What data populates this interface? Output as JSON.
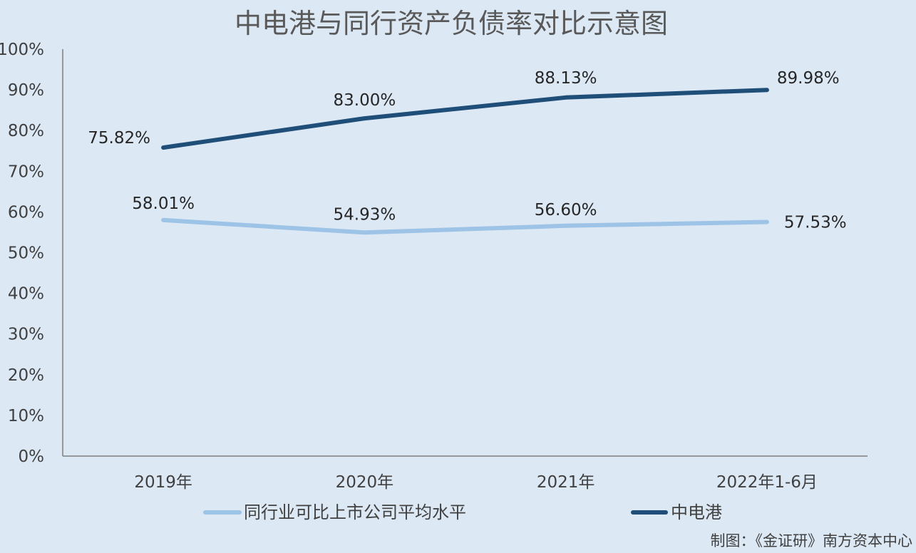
{
  "chart_data": {
    "type": "line",
    "title": "中电港与同行资产负债率对比示意图",
    "categories": [
      "2019年",
      "2020年",
      "2021年",
      "2022年1-6月"
    ],
    "ylim": [
      0,
      100
    ],
    "y_ticks": [
      "0%",
      "10%",
      "20%",
      "30%",
      "40%",
      "50%",
      "60%",
      "70%",
      "80%",
      "90%",
      "100%"
    ],
    "grid": false,
    "legend_position": "bottom",
    "series": [
      {
        "name": "同行业可比上市公司平均水平",
        "values": [
          58.01,
          54.93,
          56.6,
          57.53
        ],
        "labels": [
          "58.01%",
          "54.93%",
          "56.60%",
          "57.53%"
        ],
        "color": "#9dc3e6"
      },
      {
        "name": "中电港",
        "values": [
          75.82,
          83.0,
          88.13,
          89.98
        ],
        "labels": [
          "75.82%",
          "83.00%",
          "88.13%",
          "89.98%"
        ],
        "color": "#1f4e79"
      }
    ],
    "source_note": "制图：《金证研》南方资本中心"
  }
}
